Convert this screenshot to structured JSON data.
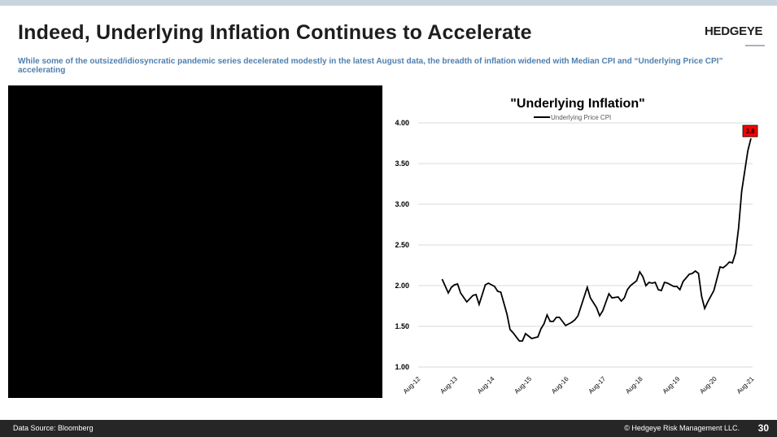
{
  "header": {
    "title": "Indeed, Underlying Inflation Continues to Accelerate",
    "logo": "HEDGEYE",
    "subtitle": "While some of the outsized/idiosyncratic pandemic series decelerated modestly in the latest August data, the breadth of inflation widened with Median CPI and “Underlying Price CPI” accelerating"
  },
  "footer": {
    "source": "Data Source: Bloomberg",
    "copyright": "© Hedgeye Risk Management LLC.",
    "page": "30"
  },
  "chart_data": {
    "type": "line",
    "title": "\"Underlying Inflation\"",
    "legend_position": "top",
    "grid": true,
    "ylim": [
      1.0,
      4.0
    ],
    "yticks": [
      "1.00",
      "1.50",
      "2.00",
      "2.50",
      "3.00",
      "3.50",
      "4.00"
    ],
    "xticks": [
      "Aug-12",
      "Aug-13",
      "Aug-14",
      "Aug-15",
      "Aug-16",
      "Aug-17",
      "Aug-18",
      "Aug-19",
      "Aug-20",
      "Aug-21"
    ],
    "xlim": [
      "2012-08",
      "2021-08"
    ],
    "last_value_label": "3.8",
    "colors": {
      "line": "#000000",
      "label_bg": "#ff0000",
      "grid": "#d9d9d9",
      "legend_text": "#595959"
    },
    "series": [
      {
        "name": "Underlying Price CPI",
        "x": [
          "2013-04",
          "2013-06",
          "2013-07",
          "2013-08",
          "2013-09",
          "2013-10",
          "2013-12",
          "2014-02",
          "2014-03",
          "2014-04",
          "2014-06",
          "2014-07",
          "2014-09",
          "2014-10",
          "2014-11",
          "2015-01",
          "2015-02",
          "2015-03",
          "2015-05",
          "2015-06",
          "2015-07",
          "2015-09",
          "2015-11",
          "2015-12",
          "2016-01",
          "2016-02",
          "2016-03",
          "2016-04",
          "2016-05",
          "2016-06",
          "2016-08",
          "2016-10",
          "2016-11",
          "2016-12",
          "2017-03",
          "2017-04",
          "2017-06",
          "2017-07",
          "2017-08",
          "2017-10",
          "2017-11",
          "2018-01",
          "2018-02",
          "2018-03",
          "2018-04",
          "2018-05",
          "2018-07",
          "2018-08",
          "2018-09",
          "2018-10",
          "2018-11",
          "2018-12",
          "2019-01",
          "2019-02",
          "2019-03",
          "2019-04",
          "2019-05",
          "2019-07",
          "2019-08",
          "2019-09",
          "2019-10",
          "2019-12",
          "2020-01",
          "2020-02",
          "2020-03",
          "2020-04",
          "2020-05",
          "2020-06",
          "2020-08",
          "2020-10",
          "2020-11",
          "2020-12",
          "2021-01",
          "2021-02",
          "2021-03",
          "2021-04",
          "2021-05",
          "2021-07",
          "2021-08"
        ],
        "values": [
          2.08,
          1.91,
          1.98,
          2.01,
          2.02,
          1.91,
          1.8,
          1.88,
          1.89,
          1.77,
          2.01,
          2.03,
          1.99,
          1.93,
          1.92,
          1.65,
          1.46,
          1.42,
          1.32,
          1.32,
          1.41,
          1.35,
          1.37,
          1.47,
          1.53,
          1.64,
          1.56,
          1.56,
          1.61,
          1.61,
          1.51,
          1.55,
          1.58,
          1.63,
          1.98,
          1.85,
          1.73,
          1.63,
          1.69,
          1.9,
          1.85,
          1.86,
          1.81,
          1.85,
          1.95,
          2.0,
          2.06,
          2.17,
          2.11,
          2.0,
          2.04,
          2.03,
          2.04,
          1.95,
          1.94,
          2.04,
          2.03,
          1.99,
          1.99,
          1.95,
          2.05,
          2.14,
          2.15,
          2.18,
          2.15,
          1.87,
          1.72,
          1.8,
          1.94,
          2.23,
          2.22,
          2.25,
          2.29,
          2.28,
          2.4,
          2.71,
          3.16,
          3.66,
          3.81
        ]
      }
    ]
  }
}
